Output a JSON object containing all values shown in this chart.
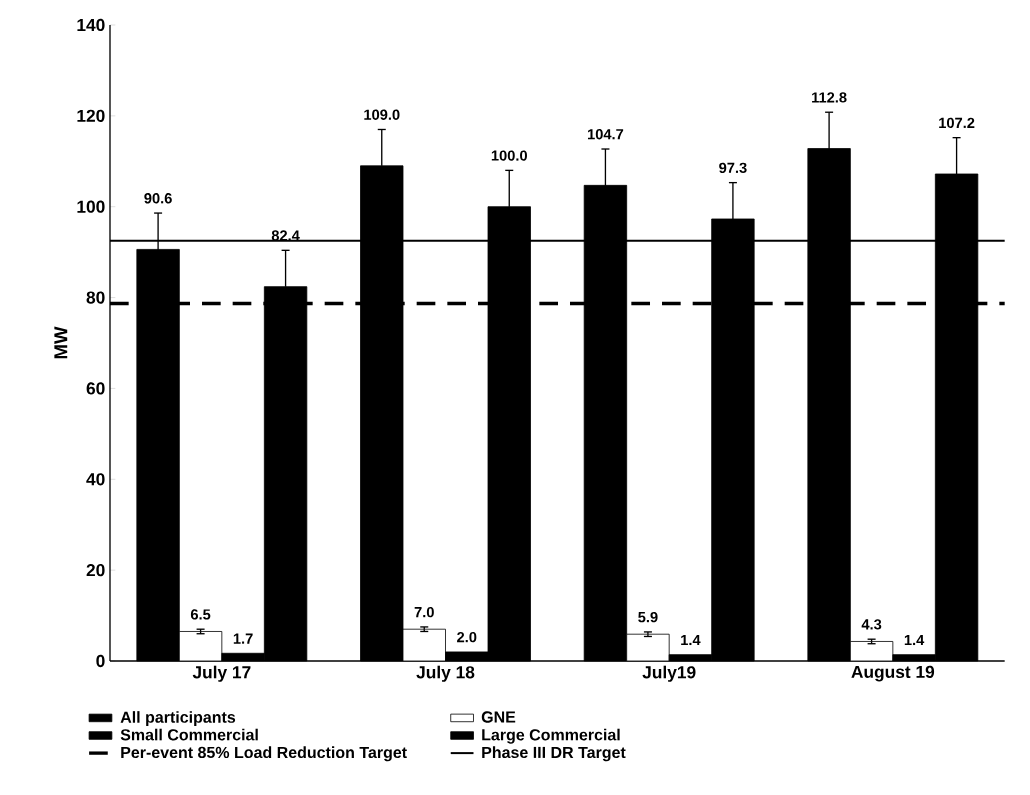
{
  "chart_data": {
    "type": "bar",
    "ylabel": "MW",
    "categories": [
      "July 17",
      "July 18",
      "July19",
      "August 19"
    ],
    "series": [
      {
        "name": "All participants",
        "color": "#000000",
        "values": [
          90.6,
          109.0,
          104.7,
          112.8
        ],
        "errors": [
          8,
          8,
          8,
          8
        ],
        "value_labels": [
          "90.6",
          "109.0",
          "104.7",
          "112.8"
        ]
      },
      {
        "name": "GNE",
        "color": "#ffffff",
        "values": [
          6.5,
          7.0,
          5.9,
          4.3
        ],
        "errors": [
          0.5,
          0.5,
          0.5,
          0.5
        ],
        "value_labels": [
          "6.5",
          "7.0",
          "5.9",
          "4.3"
        ]
      },
      {
        "name": "Small Commercial",
        "color": "#000000",
        "values": [
          1.7,
          2.0,
          1.4,
          1.4
        ],
        "value_labels": [
          "1.7",
          "2.0",
          "1.4",
          "1.4"
        ]
      },
      {
        "name": "Large Commercial",
        "color": "#000000",
        "values": [
          82.4,
          100.0,
          97.3,
          107.2
        ],
        "errors": [
          8,
          8,
          8,
          8
        ],
        "value_labels": [
          "82.4",
          "100.0",
          "97.3",
          "107.2"
        ]
      }
    ],
    "ref_lines": [
      {
        "axis": "y",
        "value": 78.7,
        "label": "Per-event 85% Load Reduction Target",
        "line_style": "dashed",
        "color": "#000000"
      },
      {
        "axis": "y",
        "value": 92.5,
        "label": "Phase III DR Target",
        "line_style": "solid",
        "color": "#000000"
      }
    ],
    "ylim": [
      0,
      140
    ],
    "yticks": [
      0,
      20,
      40,
      60,
      80,
      100,
      120,
      140
    ],
    "legend": "bottom",
    "grid": false
  }
}
